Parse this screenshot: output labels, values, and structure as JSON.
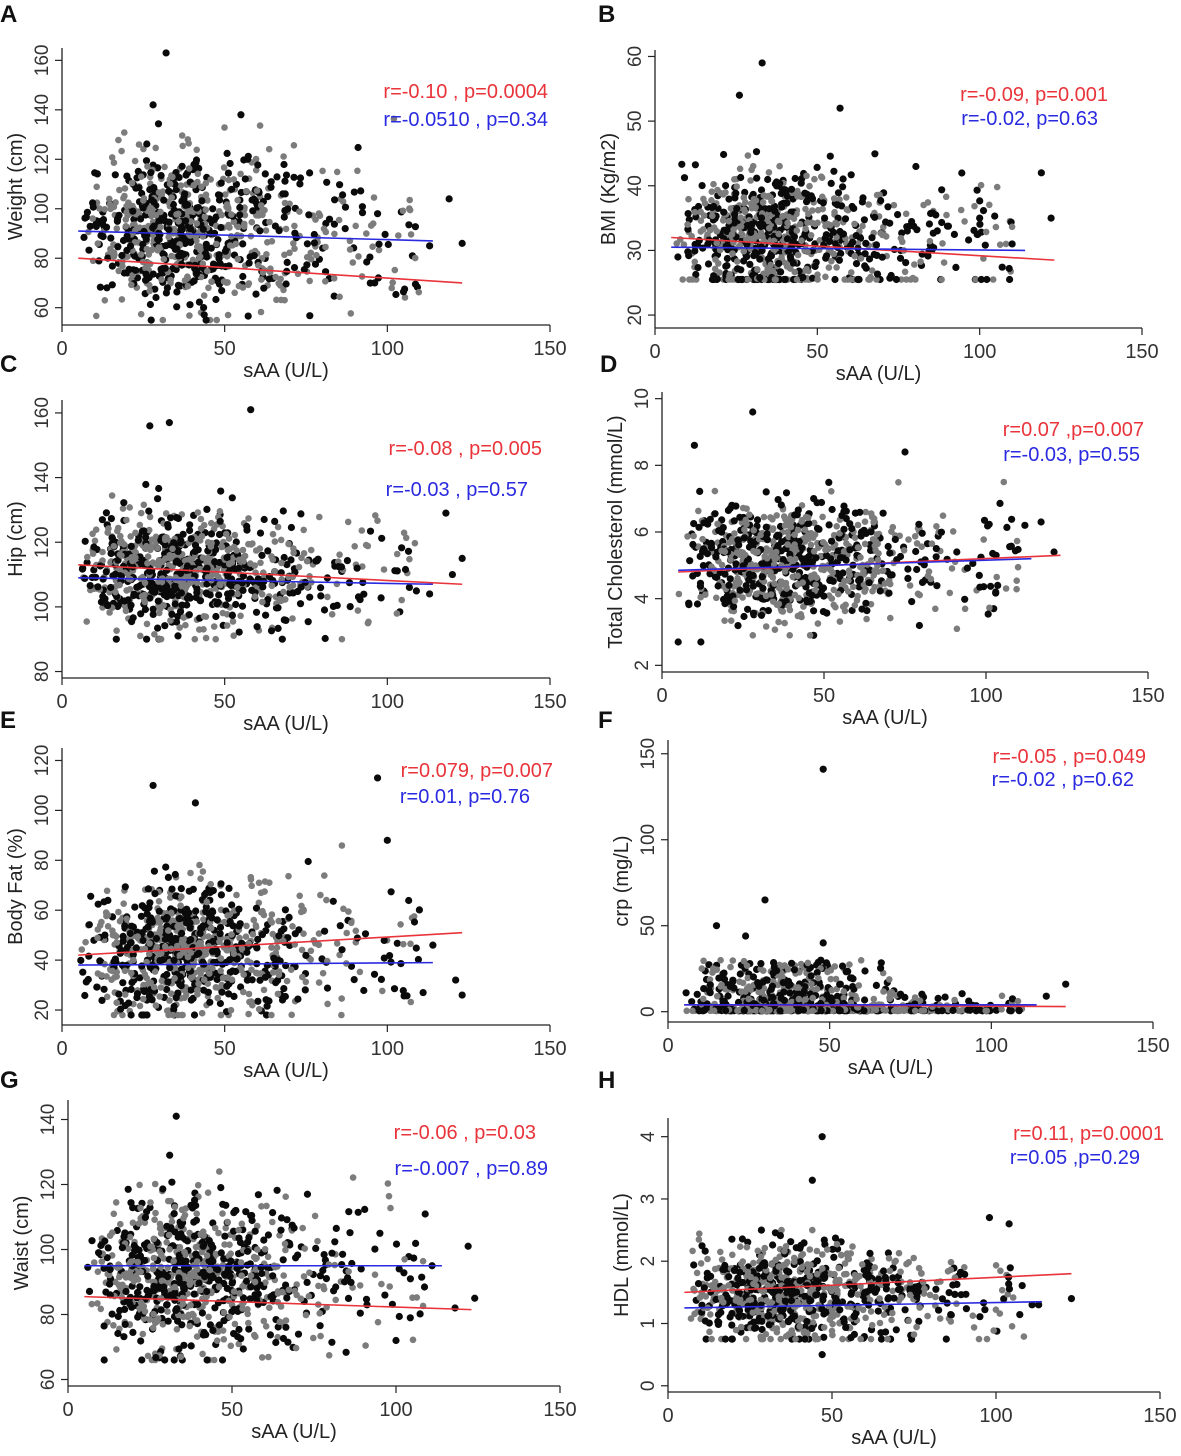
{
  "figure": {
    "colors": {
      "red": "#e8343a",
      "blue": "#2a2ae0",
      "black": "#0a0a0a",
      "gray": "#7c7c7c",
      "axis": "#222222"
    },
    "x_label": "sAA (U/L)",
    "x_ticks": [
      "0",
      "50",
      "100",
      "150"
    ]
  },
  "chart_data": [
    {
      "id": "A",
      "type": "scatter",
      "panel_label": "A",
      "xlabel": "sAA (U/L)",
      "ylabel": "Weight (cm)",
      "xlim": [
        0,
        150
      ],
      "ylim": [
        53,
        165
      ],
      "yticks": [
        60,
        80,
        100,
        120,
        140,
        160
      ],
      "fit_red": [
        [
          5,
          80
        ],
        [
          123,
          70
        ]
      ],
      "fit_blue": [
        [
          5,
          91
        ],
        [
          114,
          87
        ]
      ],
      "stats": [
        {
          "text": "r=-0.10 , p=0.0004",
          "color": "red"
        },
        {
          "text": "r=-0.0510 , p=0.34",
          "color": "blue"
        }
      ],
      "outliers": [
        [
          32,
          163
        ],
        [
          28,
          142
        ],
        [
          55,
          138
        ],
        [
          97,
          98
        ],
        [
          123,
          86
        ],
        [
          113,
          85
        ],
        [
          119,
          104
        ]
      ]
    },
    {
      "id": "B",
      "type": "scatter",
      "panel_label": "B",
      "xlabel": "sAA (U/L)",
      "ylabel": "BMI (Kg/m2)",
      "xlim": [
        0,
        150
      ],
      "ylim": [
        18,
        61
      ],
      "yticks": [
        20,
        30,
        40,
        50,
        60
      ],
      "fit_red": [
        [
          5,
          32
        ],
        [
          123,
          28.5
        ]
      ],
      "fit_blue": [
        [
          5,
          30.5
        ],
        [
          114,
          30
        ]
      ],
      "stats": [
        {
          "text": "r=-0.09, p=0.001",
          "color": "red"
        },
        {
          "text": "r=-0.02, p=0.63",
          "color": "blue"
        }
      ],
      "outliers": [
        [
          33,
          59
        ],
        [
          26,
          54
        ],
        [
          57,
          52
        ],
        [
          119,
          42
        ],
        [
          122,
          35
        ],
        [
          110,
          31
        ],
        [
          100,
          35
        ]
      ]
    },
    {
      "id": "C",
      "type": "scatter",
      "panel_label": "C",
      "xlabel": "sAA (U/L)",
      "ylabel": "Hip (cm)",
      "xlim": [
        0,
        150
      ],
      "ylim": [
        78,
        164
      ],
      "yticks": [
        80,
        100,
        120,
        140,
        160
      ],
      "fit_red": [
        [
          5,
          113
        ],
        [
          123,
          107
        ]
      ],
      "fit_blue": [
        [
          5,
          109
        ],
        [
          114,
          107
        ]
      ],
      "stats": [
        {
          "text": "r=-0.08 , p=0.005",
          "color": "red"
        },
        {
          "text": "r=-0.03 , p=0.57",
          "color": "blue"
        }
      ],
      "outliers": [
        [
          58,
          161
        ],
        [
          33,
          157
        ],
        [
          27,
          156
        ],
        [
          118,
          129
        ],
        [
          123,
          115
        ],
        [
          120,
          110
        ],
        [
          113,
          104
        ]
      ]
    },
    {
      "id": "D",
      "type": "scatter",
      "panel_label": "D",
      "xlabel": "sAA (U/L)",
      "ylabel": "Total Cholesterol (mmol/L)",
      "xlim": [
        0,
        150
      ],
      "ylim": [
        1.8,
        10.2
      ],
      "yticks": [
        2,
        4,
        6,
        8,
        10
      ],
      "fit_red": [
        [
          5,
          4.8
        ],
        [
          123,
          5.3
        ]
      ],
      "fit_blue": [
        [
          5,
          4.85
        ],
        [
          114,
          5.2
        ]
      ],
      "stats": [
        {
          "text": "r=0.07 ,p=0.007",
          "color": "red"
        },
        {
          "text": "r=-0.03, p=0.55",
          "color": "blue"
        }
      ],
      "outliers": [
        [
          28,
          9.6
        ],
        [
          10,
          8.6
        ],
        [
          75,
          8.4
        ],
        [
          5,
          2.7
        ],
        [
          12,
          2.7
        ],
        [
          112,
          6.2
        ],
        [
          121,
          5.4
        ],
        [
          103,
          4.2
        ],
        [
          117,
          6.3
        ]
      ]
    },
    {
      "id": "E",
      "type": "scatter",
      "panel_label": "E",
      "xlabel": "sAA (U/L)",
      "ylabel": "Body Fat (%)",
      "xlim": [
        0,
        150
      ],
      "ylim": [
        14,
        125
      ],
      "yticks": [
        20,
        40,
        60,
        80,
        100,
        120
      ],
      "fit_red": [
        [
          5,
          42
        ],
        [
          123,
          51
        ]
      ],
      "fit_blue": [
        [
          5,
          38
        ],
        [
          114,
          39
        ]
      ],
      "stats": [
        {
          "text": "r=0.079, p=0.007",
          "color": "red"
        },
        {
          "text": "r=0.01, p=0.76",
          "color": "blue"
        }
      ],
      "outliers": [
        [
          97,
          113
        ],
        [
          28,
          110
        ],
        [
          41,
          103
        ],
        [
          100,
          88
        ],
        [
          111,
          27
        ],
        [
          121,
          32
        ],
        [
          123,
          26
        ],
        [
          114,
          46
        ]
      ]
    },
    {
      "id": "F",
      "type": "scatter",
      "panel_label": "F",
      "xlabel": "sAA (U/L)",
      "ylabel": "crp (mg/L)",
      "xlim": [
        0,
        150
      ],
      "ylim": [
        -6,
        158
      ],
      "yticks": [
        0,
        50,
        100,
        150
      ],
      "fit_red": [
        [
          5,
          4
        ],
        [
          123,
          3
        ]
      ],
      "fit_blue": [
        [
          5,
          4
        ],
        [
          114,
          4
        ]
      ],
      "stats": [
        {
          "text": "r=-0.05 , p=0.049",
          "color": "red"
        },
        {
          "text": "r=-0.02 , p=0.62",
          "color": "blue"
        }
      ],
      "outliers": [
        [
          48,
          141
        ],
        [
          30,
          65
        ],
        [
          15,
          50
        ],
        [
          24,
          44
        ],
        [
          48,
          40
        ],
        [
          123,
          16
        ],
        [
          117,
          9
        ]
      ]
    },
    {
      "id": "G",
      "type": "scatter",
      "panel_label": "G",
      "xlabel": "sAA (U/L)",
      "ylabel": "Waist (cm)",
      "xlim": [
        0,
        150
      ],
      "ylim": [
        58,
        146
      ],
      "yticks": [
        60,
        80,
        100,
        120,
        140
      ],
      "fit_red": [
        [
          5,
          85.5
        ],
        [
          123,
          81.5
        ]
      ],
      "fit_blue": [
        [
          5,
          95
        ],
        [
          114,
          95
        ]
      ],
      "stats": [
        {
          "text": "r=-0.06 , p=0.03",
          "color": "red"
        },
        {
          "text": "r=-0.007 , p=0.89",
          "color": "blue"
        }
      ],
      "outliers": [
        [
          33,
          141
        ],
        [
          31,
          129
        ],
        [
          73,
          117
        ],
        [
          122,
          101
        ],
        [
          124,
          85
        ],
        [
          118,
          82
        ],
        [
          100,
          72
        ],
        [
          111,
          95
        ]
      ]
    },
    {
      "id": "H",
      "type": "scatter",
      "panel_label": "H",
      "xlabel": "sAA (U/L)",
      "ylabel": "HDL (mmol/L)",
      "xlim": [
        0,
        150
      ],
      "ylim": [
        -0.1,
        4.3
      ],
      "yticks": [
        0,
        1,
        2,
        3,
        4
      ],
      "fit_red": [
        [
          5,
          1.5
        ],
        [
          123,
          1.8
        ]
      ],
      "fit_blue": [
        [
          5,
          1.25
        ],
        [
          114,
          1.35
        ]
      ],
      "stats": [
        {
          "text": "r=0.11, p=0.0001",
          "color": "red"
        },
        {
          "text": "r=0.05 ,p=0.29",
          "color": "blue"
        }
      ],
      "outliers": [
        [
          47,
          4.0
        ],
        [
          44,
          3.3
        ],
        [
          104,
          2.6
        ],
        [
          123,
          1.4
        ],
        [
          111,
          1.3
        ],
        [
          113,
          1.3
        ],
        [
          98,
          2.7
        ],
        [
          47,
          0.5
        ]
      ]
    }
  ]
}
